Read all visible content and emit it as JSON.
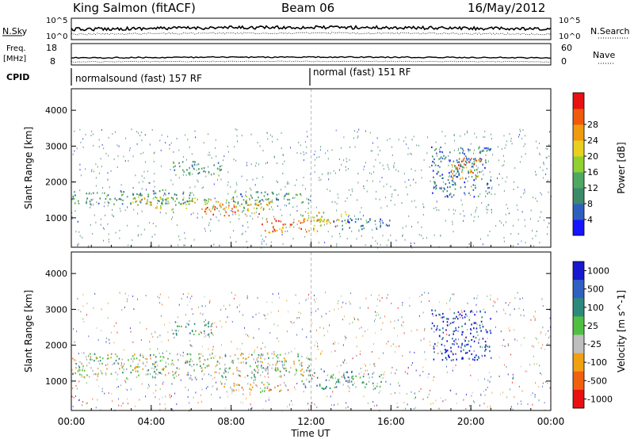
{
  "header": {
    "station": "King Salmon (fitACF)",
    "beam": "Beam 06",
    "date": "16/May/2012"
  },
  "strips": {
    "nsky_label": "N.Sky",
    "nsky_ticks": [
      "10^5",
      "10^0"
    ],
    "nsearch_label": "N.Search",
    "nsearch_ticks": [
      "10^5",
      "10^0"
    ],
    "freq_label_1": "Freq.",
    "freq_label_2": "[MHz]",
    "freq_ticks": [
      "18",
      "8"
    ],
    "nave_label": "Nave",
    "nave_ticks": [
      "60",
      "0"
    ],
    "cpid_label": "CPID",
    "cpid_segments": [
      {
        "text": "normalsound (fast) 157 RF",
        "start_hour": 0
      },
      {
        "text": "normal (fast) 151 RF",
        "start_hour": 12
      }
    ]
  },
  "chart_data": [
    {
      "type": "heatmap",
      "name": "power",
      "ylabel": "Slant Range [km]",
      "xlabel": "Time UT",
      "x_ticks": [
        "00:00",
        "04:00",
        "08:00",
        "12:00",
        "16:00",
        "20:00",
        "00:00"
      ],
      "xlim_hours": [
        0,
        24
      ],
      "ylim": [
        180,
        4600
      ],
      "y_ticks": [
        1000,
        2000,
        3000,
        4000
      ],
      "colorbar": {
        "label": "Power [dB]",
        "ticks": [
          "4",
          "8",
          "12",
          "16",
          "20",
          "24",
          "28"
        ],
        "colors": [
          "#1515ff",
          "#2d5fbf",
          "#3d8a6a",
          "#4ea860",
          "#90d030",
          "#e8d020",
          "#f09a10",
          "#f05a0a",
          "#e81010"
        ]
      },
      "regions": [
        {
          "t0": 0,
          "t1": 6,
          "r0": 1380,
          "r1": 1800,
          "level": 3
        },
        {
          "t0": 3,
          "t1": 10,
          "r0": 1250,
          "r1": 1600,
          "level": 5
        },
        {
          "t0": 6.5,
          "t1": 9.5,
          "r0": 1080,
          "r1": 1400,
          "level": 7
        },
        {
          "t0": 8,
          "t1": 12,
          "r0": 1400,
          "r1": 1750,
          "level": 3
        },
        {
          "t0": 9.5,
          "t1": 12.5,
          "r0": 600,
          "r1": 1000,
          "level": 7
        },
        {
          "t0": 11.5,
          "t1": 14,
          "r0": 800,
          "r1": 1200,
          "level": 5
        },
        {
          "t0": 13,
          "t1": 16,
          "r0": 700,
          "r1": 1000,
          "level": 2
        },
        {
          "t0": 5,
          "t1": 7.5,
          "r0": 2200,
          "r1": 2600,
          "level": 3
        },
        {
          "t0": 18,
          "t1": 21,
          "r0": 1600,
          "r1": 3000,
          "level": 2
        },
        {
          "t0": 19,
          "t1": 20.5,
          "r0": 2100,
          "r1": 2700,
          "level": 7
        }
      ]
    },
    {
      "type": "heatmap",
      "name": "velocity",
      "ylabel": "Slant Range [km]",
      "xlabel": "Time UT",
      "x_ticks": [
        "00:00",
        "04:00",
        "08:00",
        "12:00",
        "16:00",
        "20:00",
        "00:00"
      ],
      "xlim_hours": [
        0,
        24
      ],
      "ylim": [
        180,
        4600
      ],
      "y_ticks": [
        1000,
        2000,
        3000,
        4000
      ],
      "colorbar": {
        "label": "Velocity [m s^-1]",
        "ticks": [
          "1000",
          "500",
          "100",
          "25",
          "-25",
          "-100",
          "-500",
          "-1000"
        ],
        "colors": [
          "#1818d0",
          "#3060c0",
          "#2d8a7a",
          "#50c040",
          "#bebebe",
          "#f0a010",
          "#f06010",
          "#e81010"
        ]
      },
      "regions": [
        {
          "t0": 0,
          "t1": 12,
          "r0": 1100,
          "r1": 1800,
          "level": 4
        },
        {
          "t0": 7,
          "t1": 11,
          "r0": 700,
          "r1": 1000,
          "level": 5
        },
        {
          "t0": 11.5,
          "t1": 15.5,
          "r0": 800,
          "r1": 1300,
          "level": 3
        },
        {
          "t0": 18,
          "t1": 21,
          "r0": 1600,
          "r1": 3000,
          "level": 1
        },
        {
          "t0": 5,
          "t1": 7,
          "r0": 2300,
          "r1": 2700,
          "level": 3
        }
      ]
    }
  ]
}
